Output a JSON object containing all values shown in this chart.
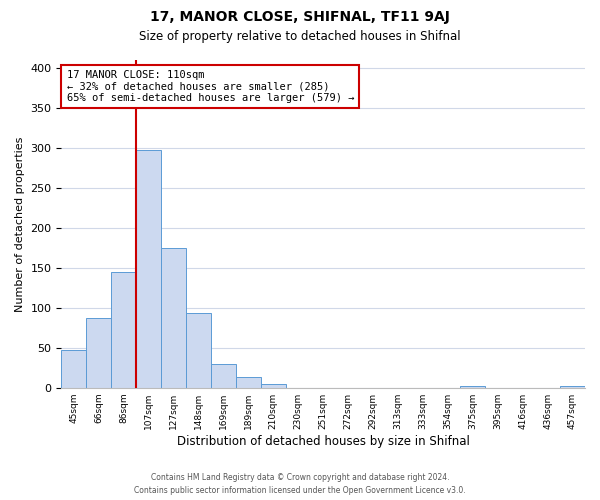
{
  "title": "17, MANOR CLOSE, SHIFNAL, TF11 9AJ",
  "subtitle": "Size of property relative to detached houses in Shifnal",
  "xlabel": "Distribution of detached houses by size in Shifnal",
  "ylabel": "Number of detached properties",
  "bar_labels": [
    "45sqm",
    "66sqm",
    "86sqm",
    "107sqm",
    "127sqm",
    "148sqm",
    "169sqm",
    "189sqm",
    "210sqm",
    "230sqm",
    "251sqm",
    "272sqm",
    "292sqm",
    "313sqm",
    "333sqm",
    "354sqm",
    "375sqm",
    "395sqm",
    "416sqm",
    "436sqm",
    "457sqm"
  ],
  "bar_values": [
    47,
    87,
    145,
    298,
    175,
    93,
    30,
    14,
    5,
    0,
    0,
    0,
    0,
    0,
    0,
    0,
    2,
    0,
    0,
    0,
    2
  ],
  "bar_color": "#ccd9f0",
  "bar_edgecolor": "#5b9bd5",
  "vline_color": "#cc0000",
  "ylim": [
    0,
    410
  ],
  "yticks": [
    0,
    50,
    100,
    150,
    200,
    250,
    300,
    350,
    400
  ],
  "annotation_title": "17 MANOR CLOSE: 110sqm",
  "annotation_line1": "← 32% of detached houses are smaller (285)",
  "annotation_line2": "65% of semi-detached houses are larger (579) →",
  "annotation_box_color": "#ffffff",
  "annotation_box_edgecolor": "#cc0000",
  "footer_line1": "Contains HM Land Registry data © Crown copyright and database right 2024.",
  "footer_line2": "Contains public sector information licensed under the Open Government Licence v3.0.",
  "background_color": "#ffffff",
  "grid_color": "#d0d8e8"
}
